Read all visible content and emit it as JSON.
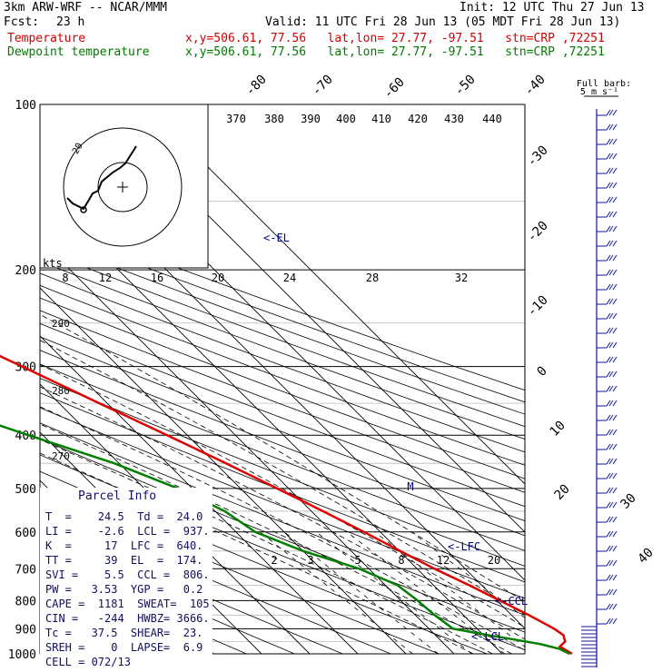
{
  "header": {
    "model": "3km ARW-WRF -- NCAR/MMM",
    "init": "Init: 12 UTC Thu 27 Jun 13",
    "fcst_label": "Fcst:",
    "fcst_value": "23 h",
    "valid": "Valid: 11 UTC Fri 28 Jun 13 (05 MDT Fri 28 Jun 13)",
    "temp_label": "Temperature",
    "temp_info": "x,y=506.61, 77.56   lat,lon= 27.77, -97.51   stn=CRP ,72251",
    "dew_label": "Dewpoint temperature",
    "dew_info": "x,y=506.61, 77.56   lat,lon= 27.77, -97.51   stn=CRP ,72251"
  },
  "barb_legend": {
    "title": "Full barb:",
    "value": "5 m s⁻¹"
  },
  "hodograph": {
    "units_label": "kts",
    "ring_label": "20"
  },
  "annotations": {
    "el": "<-EL",
    "lfc": "<-LFC",
    "ccl": "<-CCL",
    "lcl": "<-LCL",
    "m_marker": "M"
  },
  "parcel_info": {
    "title": "Parcel Info",
    "rows": [
      "T  =    24.5  Td =  24.0",
      "LI =    -2.6  LCL =  937.",
      "K  =     17  LFC =  640.",
      "TT =     39  EL  =  174.",
      "SVI =    5.5  CCL =  806.",
      "PW =   3.53  YGP =   0.2",
      "CAPE =  1181  SWEAT=  105",
      "CIN =   -244  HWBZ= 3666.",
      "Tc =   37.5  SHEAR=  23.",
      "SREH =    0  LAPSE=  6.9",
      "CELL = 072/13"
    ]
  },
  "chart_data": {
    "type": "line",
    "title": "",
    "pressure_levels": [
      100,
      200,
      300,
      400,
      500,
      600,
      700,
      800,
      900,
      1000
    ],
    "isotherm_labels": [
      -80,
      -70,
      -60,
      -50,
      -40,
      -30,
      -20,
      -10,
      0,
      10,
      20,
      30,
      40
    ],
    "theta_labels": [
      370,
      380,
      390,
      400,
      410,
      420,
      430,
      440
    ],
    "mixing_ratio_labels": [
      2,
      3,
      5,
      8,
      12,
      20
    ],
    "hodo_speed_labels": [
      8,
      12,
      16,
      20,
      24,
      28,
      32
    ],
    "left_small_labels": [
      290,
      280,
      270
    ],
    "series": [
      {
        "name": "Temperature",
        "color": "#e00000",
        "profile": [
          {
            "p": 1000,
            "t": 24.5
          },
          {
            "p": 985,
            "t": 24.0
          },
          {
            "p": 970,
            "t": 23.5
          },
          {
            "p": 950,
            "t": 25.6
          },
          {
            "p": 925,
            "t": 26.6
          },
          {
            "p": 900,
            "t": 26.0
          },
          {
            "p": 850,
            "t": 23.6
          },
          {
            "p": 800,
            "t": 20.6
          },
          {
            "p": 750,
            "t": 17.4
          },
          {
            "p": 700,
            "t": 13.6
          },
          {
            "p": 650,
            "t": 10.2
          },
          {
            "p": 600,
            "t": 6.6
          },
          {
            "p": 550,
            "t": 2.4
          },
          {
            "p": 500,
            "t": -2.4
          },
          {
            "p": 450,
            "t": -7.8
          },
          {
            "p": 400,
            "t": -14.2
          },
          {
            "p": 350,
            "t": -21.6
          },
          {
            "p": 300,
            "t": -30.0
          },
          {
            "p": 250,
            "t": -40.2
          },
          {
            "p": 200,
            "t": -52.6
          },
          {
            "p": 175,
            "t": -60.0
          },
          {
            "p": 150,
            "t": -64.0
          },
          {
            "p": 125,
            "t": -67.0
          },
          {
            "p": 100,
            "t": -69.5
          }
        ]
      },
      {
        "name": "Dewpoint temperature",
        "color": "#008000",
        "profile": [
          {
            "p": 1000,
            "t": 24.0
          },
          {
            "p": 980,
            "t": 23.0
          },
          {
            "p": 960,
            "t": 20.0
          },
          {
            "p": 940,
            "t": 15.0
          },
          {
            "p": 925,
            "t": 11.0
          },
          {
            "p": 900,
            "t": 5.0
          },
          {
            "p": 850,
            "t": 4.0
          },
          {
            "p": 800,
            "t": 3.5
          },
          {
            "p": 750,
            "t": 2.5
          },
          {
            "p": 700,
            "t": -2.0
          },
          {
            "p": 650,
            "t": -10.0
          },
          {
            "p": 600,
            "t": -16.0
          },
          {
            "p": 550,
            "t": -18.0
          },
          {
            "p": 500,
            "t": -23.0
          },
          {
            "p": 450,
            "t": -31.0
          },
          {
            "p": 400,
            "t": -43.0
          },
          {
            "p": 350,
            "t": -56.0
          },
          {
            "p": 300,
            "t": -63.0
          },
          {
            "p": 250,
            "t": -70.0
          },
          {
            "p": 200,
            "t": -74.0
          },
          {
            "p": 175,
            "t": -80.0
          },
          {
            "p": 150,
            "t": -88.0
          },
          {
            "p": 125,
            "t": -92.0
          },
          {
            "p": 100,
            "t": -90.0
          }
        ]
      }
    ],
    "xlabel": "",
    "ylabel": "",
    "log_pressure_axis": true,
    "grid": true
  }
}
